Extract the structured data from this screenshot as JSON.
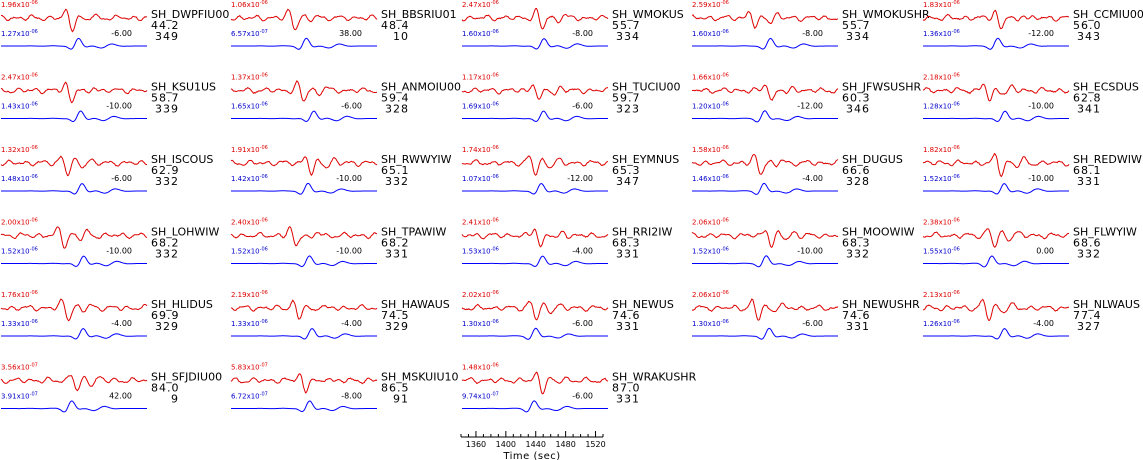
{
  "chart_data": {
    "type": "line",
    "xlabel": "Time (sec)",
    "x_ticks": [
      1360,
      1400,
      1440,
      1480,
      1520
    ],
    "xlim": [
      1340,
      1530
    ],
    "series_colors": {
      "observed": "#dd0000",
      "synthetic": "#0000ff"
    },
    "stations": [
      {
        "name": "SH_DWPFIU00",
        "dist": "44.2",
        "az": "349",
        "amp_obs": "1.96",
        "exp_obs": "-06",
        "amp_syn": "1.27",
        "exp_syn": "-06",
        "shift": "-6.00"
      },
      {
        "name": "SH_BBSRIU01",
        "dist": "48.4",
        "az": "10",
        "amp_obs": "1.06",
        "exp_obs": "-06",
        "amp_syn": "6.57",
        "exp_syn": "-07",
        "shift": "38.00"
      },
      {
        "name": "SH_WMOKUS",
        "dist": "55.7",
        "az": "334",
        "amp_obs": "2.47",
        "exp_obs": "-06",
        "amp_syn": "1.60",
        "exp_syn": "-06",
        "shift": "-8.00"
      },
      {
        "name": "SH_WMOKUSHR",
        "dist": "55.7",
        "az": "334",
        "amp_obs": "2.59",
        "exp_obs": "-06",
        "amp_syn": "1.60",
        "exp_syn": "-06",
        "shift": "-8.00"
      },
      {
        "name": "SH_CCMIU00",
        "dist": "56.0",
        "az": "343",
        "amp_obs": "1.83",
        "exp_obs": "-06",
        "amp_syn": "1.36",
        "exp_syn": "-06",
        "shift": "-12.00"
      },
      {
        "name": "SH_KSU1US",
        "dist": "58.7",
        "az": "339",
        "amp_obs": "2.47",
        "exp_obs": "-06",
        "amp_syn": "1.43",
        "exp_syn": "-06",
        "shift": "-10.00"
      },
      {
        "name": "SH_ANMOIU00",
        "dist": "59.4",
        "az": "328",
        "amp_obs": "1.37",
        "exp_obs": "-06",
        "amp_syn": "1.65",
        "exp_syn": "-06",
        "shift": "-6.00"
      },
      {
        "name": "SH_TUCIU00",
        "dist": "59.7",
        "az": "323",
        "amp_obs": "1.17",
        "exp_obs": "-06",
        "amp_syn": "1.69",
        "exp_syn": "-06",
        "shift": "-6.00"
      },
      {
        "name": "SH_JFWSUSHR",
        "dist": "60.3",
        "az": "346",
        "amp_obs": "1.66",
        "exp_obs": "-06",
        "amp_syn": "1.20",
        "exp_syn": "-06",
        "shift": "-12.00"
      },
      {
        "name": "SH_ECSDUS",
        "dist": "62.8",
        "az": "341",
        "amp_obs": "2.18",
        "exp_obs": "-06",
        "amp_syn": "1.28",
        "exp_syn": "-06",
        "shift": "-10.00"
      },
      {
        "name": "SH_ISCOUS",
        "dist": "62.9",
        "az": "332",
        "amp_obs": "1.32",
        "exp_obs": "-06",
        "amp_syn": "1.48",
        "exp_syn": "-06",
        "shift": "-6.00"
      },
      {
        "name": "SH_RWWYIW",
        "dist": "65.1",
        "az": "332",
        "amp_obs": "1.91",
        "exp_obs": "-06",
        "amp_syn": "1.42",
        "exp_syn": "-06",
        "shift": "-10.00"
      },
      {
        "name": "SH_EYMNUS",
        "dist": "65.3",
        "az": "347",
        "amp_obs": "1.74",
        "exp_obs": "-06",
        "amp_syn": "1.07",
        "exp_syn": "-06",
        "shift": "-12.00"
      },
      {
        "name": "SH_DUGUS",
        "dist": "66.6",
        "az": "328",
        "amp_obs": "1.58",
        "exp_obs": "-06",
        "amp_syn": "1.46",
        "exp_syn": "-06",
        "shift": "-4.00"
      },
      {
        "name": "SH_REDWIW",
        "dist": "68.1",
        "az": "331",
        "amp_obs": "1.82",
        "exp_obs": "-06",
        "amp_syn": "1.52",
        "exp_syn": "-06",
        "shift": "-10.00"
      },
      {
        "name": "SH_LOHWIW",
        "dist": "68.2",
        "az": "332",
        "amp_obs": "2.00",
        "exp_obs": "-06",
        "amp_syn": "1.52",
        "exp_syn": "-06",
        "shift": "-10.00"
      },
      {
        "name": "SH_TPAWIW",
        "dist": "68.2",
        "az": "331",
        "amp_obs": "2.40",
        "exp_obs": "-06",
        "amp_syn": "1.52",
        "exp_syn": "-06",
        "shift": "-10.00"
      },
      {
        "name": "SH_RRI2IW",
        "dist": "68.3",
        "az": "331",
        "amp_obs": "2.41",
        "exp_obs": "-06",
        "amp_syn": "1.53",
        "exp_syn": "-06",
        "shift": "-4.00"
      },
      {
        "name": "SH_MOOWIW",
        "dist": "68.3",
        "az": "332",
        "amp_obs": "2.06",
        "exp_obs": "-06",
        "amp_syn": "1.52",
        "exp_syn": "-06",
        "shift": "-10.00"
      },
      {
        "name": "SH_FLWYIW",
        "dist": "68.6",
        "az": "332",
        "amp_obs": "2.38",
        "exp_obs": "-06",
        "amp_syn": "1.55",
        "exp_syn": "-06",
        "shift": "0.00"
      },
      {
        "name": "SH_HLIDUS",
        "dist": "69.9",
        "az": "329",
        "amp_obs": "1.76",
        "exp_obs": "-06",
        "amp_syn": "1.33",
        "exp_syn": "-06",
        "shift": "-4.00"
      },
      {
        "name": "SH_HAWAUS",
        "dist": "74.5",
        "az": "329",
        "amp_obs": "2.19",
        "exp_obs": "-06",
        "amp_syn": "1.33",
        "exp_syn": "-06",
        "shift": "-4.00"
      },
      {
        "name": "SH_NEWUS",
        "dist": "74.6",
        "az": "331",
        "amp_obs": "2.02",
        "exp_obs": "-06",
        "amp_syn": "1.30",
        "exp_syn": "-06",
        "shift": "-6.00"
      },
      {
        "name": "SH_NEWUSHR",
        "dist": "74.6",
        "az": "331",
        "amp_obs": "2.06",
        "exp_obs": "-06",
        "amp_syn": "1.30",
        "exp_syn": "-06",
        "shift": "-6.00"
      },
      {
        "name": "SH_NLWAUS",
        "dist": "77.4",
        "az": "327",
        "amp_obs": "2.13",
        "exp_obs": "-06",
        "amp_syn": "1.26",
        "exp_syn": "-06",
        "shift": "-4.00"
      },
      {
        "name": "SH_SFJDIU00",
        "dist": "84.0",
        "az": "9",
        "amp_obs": "3.56",
        "exp_obs": "-07",
        "amp_syn": "3.91",
        "exp_syn": "-07",
        "shift": "42.00"
      },
      {
        "name": "SH_MSKUIU10",
        "dist": "86.5",
        "az": "91",
        "amp_obs": "5.83",
        "exp_obs": "-07",
        "amp_syn": "6.72",
        "exp_syn": "-07",
        "shift": "-8.00"
      },
      {
        "name": "SH_WRAKUSHR",
        "dist": "87.0",
        "az": "331",
        "amp_obs": "1.48",
        "exp_obs": "-06",
        "amp_syn": "9.74",
        "exp_syn": "-07",
        "shift": "-6.00"
      }
    ]
  }
}
